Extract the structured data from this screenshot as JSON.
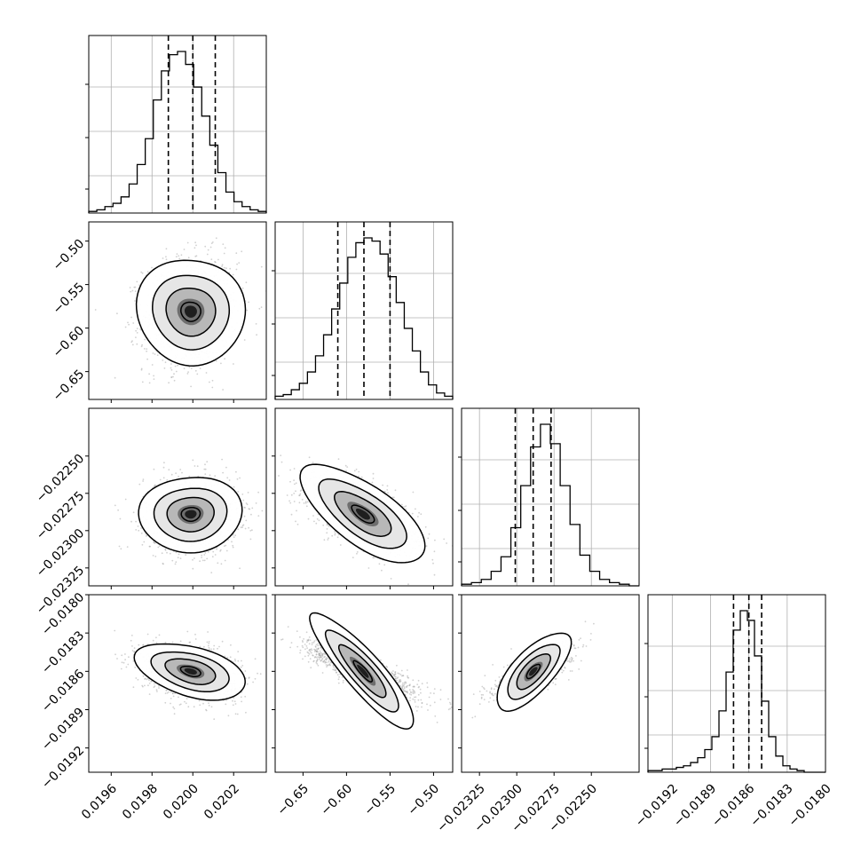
{
  "chart_data": {
    "type": "corner",
    "title": "",
    "grid": true,
    "quantiles": [
      0.16,
      0.5,
      0.84
    ],
    "parameters": [
      {
        "ticks": [
          0.0196,
          0.0198,
          0.02,
          0.0202
        ],
        "tick_labels": [
          "0.0196",
          "0.0198",
          "0.0200",
          "0.0202"
        ],
        "range": [
          0.01949,
          0.02036
        ],
        "mean": 0.01999,
        "sd": 0.00011,
        "quantile_values": [
          0.01988,
          0.02,
          0.02011
        ],
        "hist": [
          1,
          2,
          4,
          6,
          10,
          18,
          30,
          46,
          70,
          88,
          98,
          100,
          92,
          78,
          60,
          42,
          25,
          13,
          7,
          4,
          2,
          1
        ]
      },
      {
        "ticks": [
          -0.65,
          -0.6,
          -0.55,
          -0.5
        ],
        "tick_labels": [
          "−0.65",
          "−0.60",
          "−0.55",
          "−0.50"
        ],
        "range": [
          -0.682,
          -0.478
        ],
        "mean": -0.581,
        "sd": 0.03,
        "quantile_values": [
          -0.61,
          -0.58,
          -0.55
        ],
        "hist": [
          2,
          3,
          6,
          10,
          17,
          27,
          40,
          56,
          72,
          88,
          97,
          100,
          98,
          90,
          76,
          60,
          44,
          30,
          17,
          9,
          4,
          2
        ]
      },
      {
        "ticks": [
          -0.02325,
          -0.023,
          -0.02275,
          -0.0225
        ],
        "tick_labels": [
          "−0.02325",
          "−0.02300",
          "−0.02275",
          "−0.02250"
        ],
        "range": [
          -0.02337,
          -0.02218
        ],
        "mean": -0.02289,
        "sd": 0.00012,
        "quantile_values": [
          -0.02301,
          -0.02289,
          -0.02277
        ],
        "hist": [
          1,
          2,
          4,
          9,
          18,
          36,
          62,
          86,
          100,
          88,
          62,
          38,
          19,
          9,
          4,
          2,
          1,
          0
        ]
      },
      {
        "ticks": [
          -0.0192,
          -0.0189,
          -0.0186,
          -0.0183,
          -0.018
        ],
        "tick_labels": [
          "−0.0192",
          "−0.0189",
          "−0.0186",
          "−0.0183",
          "−0.0180"
        ],
        "range": [
          -0.01939,
          -0.018
        ],
        "mean": -0.0186,
        "sd": 0.0001,
        "quantile_values": [
          -0.01872,
          -0.0186,
          -0.0185
        ],
        "hist": [
          1,
          1,
          2,
          2,
          3,
          4,
          6,
          9,
          14,
          22,
          38,
          62,
          88,
          100,
          94,
          72,
          44,
          22,
          10,
          4,
          2,
          1,
          0,
          0,
          0
        ]
      }
    ],
    "correlations": [
      [
        1.0,
        0.1,
        0.0,
        -0.3
      ],
      [
        0.1,
        1.0,
        -0.6,
        -0.85
      ],
      [
        0.0,
        -0.6,
        1.0,
        0.75
      ],
      [
        -0.3,
        -0.85,
        0.75,
        1.0
      ]
    ],
    "y_tick_labels_shown_for_rows": [
      1,
      2,
      3
    ]
  }
}
